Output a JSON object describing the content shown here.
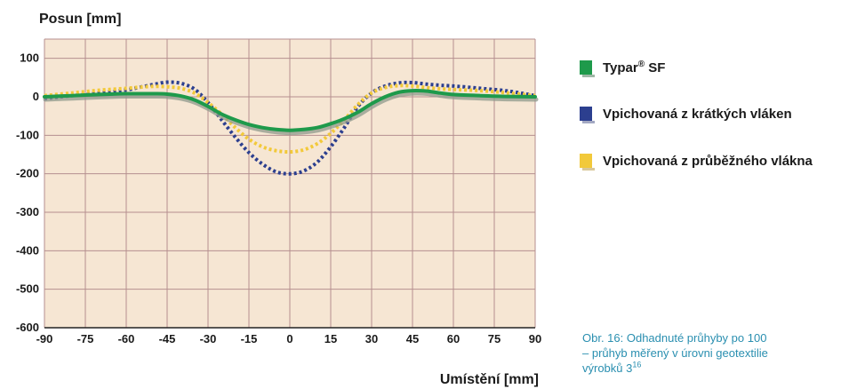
{
  "chart_data": {
    "type": "line",
    "ylabel": "Posun [mm]",
    "xlabel": "Umístění [mm]",
    "xlim": [
      -90,
      90
    ],
    "ylim": [
      -600,
      150
    ],
    "x_ticks": [
      -90,
      -75,
      -60,
      -45,
      -30,
      -15,
      0,
      15,
      30,
      45,
      60,
      75,
      90
    ],
    "y_ticks": [
      100,
      0,
      -100,
      -200,
      -300,
      -400,
      -500,
      -600
    ],
    "y_tick_labels": [
      "100",
      "0",
      "-100",
      "-200",
      "-300",
      "-400",
      "-500",
      "-600"
    ],
    "x_tick_labels": [
      "-90",
      "-75",
      "-60",
      "-45",
      "-30",
      "-15",
      "0",
      "15",
      "30",
      "45",
      "60",
      "75",
      "90"
    ],
    "grid": true,
    "legend_position": "right",
    "series": [
      {
        "name": "Typar",
        "name_sup": "®",
        "name_suffix": " SF",
        "color": "#1e9a4b",
        "style": "solid",
        "x": [
          -90,
          -80,
          -70,
          -60,
          -50,
          -45,
          -40,
          -35,
          -30,
          -25,
          -20,
          -15,
          -10,
          -5,
          0,
          5,
          10,
          15,
          20,
          25,
          30,
          35,
          40,
          45,
          50,
          55,
          60,
          70,
          80,
          90
        ],
        "y": [
          0,
          3,
          6,
          8,
          8,
          7,
          2,
          -8,
          -25,
          -45,
          -60,
          -72,
          -80,
          -85,
          -87,
          -85,
          -80,
          -70,
          -57,
          -40,
          -18,
          0,
          12,
          16,
          15,
          10,
          6,
          3,
          1,
          0
        ]
      },
      {
        "name": "Vpichovaná z krátkých vláken",
        "color": "#2c3f8f",
        "style": "dotted",
        "x": [
          -90,
          -80,
          -70,
          -60,
          -55,
          -50,
          -45,
          -40,
          -35,
          -30,
          -25,
          -20,
          -15,
          -10,
          -5,
          0,
          5,
          10,
          15,
          20,
          25,
          30,
          35,
          40,
          45,
          50,
          55,
          60,
          70,
          80,
          90
        ],
        "y": [
          -5,
          3,
          10,
          18,
          25,
          32,
          38,
          35,
          20,
          -15,
          -60,
          -105,
          -145,
          -175,
          -195,
          -200,
          -193,
          -170,
          -130,
          -80,
          -25,
          10,
          28,
          36,
          37,
          33,
          30,
          28,
          22,
          15,
          3
        ]
      },
      {
        "name": "Vpichovaná z průběžného vlákna",
        "color": "#f2c93a",
        "style": "dotted",
        "x": [
          -90,
          -80,
          -70,
          -60,
          -55,
          -50,
          -45,
          -40,
          -35,
          -30,
          -25,
          -20,
          -15,
          -10,
          -5,
          0,
          5,
          10,
          15,
          20,
          25,
          30,
          35,
          40,
          45,
          50,
          55,
          60,
          70,
          80,
          90
        ],
        "y": [
          3,
          10,
          17,
          22,
          25,
          27,
          26,
          22,
          10,
          -15,
          -45,
          -80,
          -110,
          -130,
          -140,
          -143,
          -138,
          -122,
          -95,
          -60,
          -20,
          10,
          24,
          29,
          28,
          24,
          21,
          19,
          16,
          10,
          3
        ]
      }
    ]
  },
  "caption": {
    "line1": "Obr. 16: Odhadnuté průhyby po 100",
    "line2": "– průhyb měřený v úrovni geotextilie",
    "line3": "výrobků 3",
    "line3_sup": "16"
  }
}
